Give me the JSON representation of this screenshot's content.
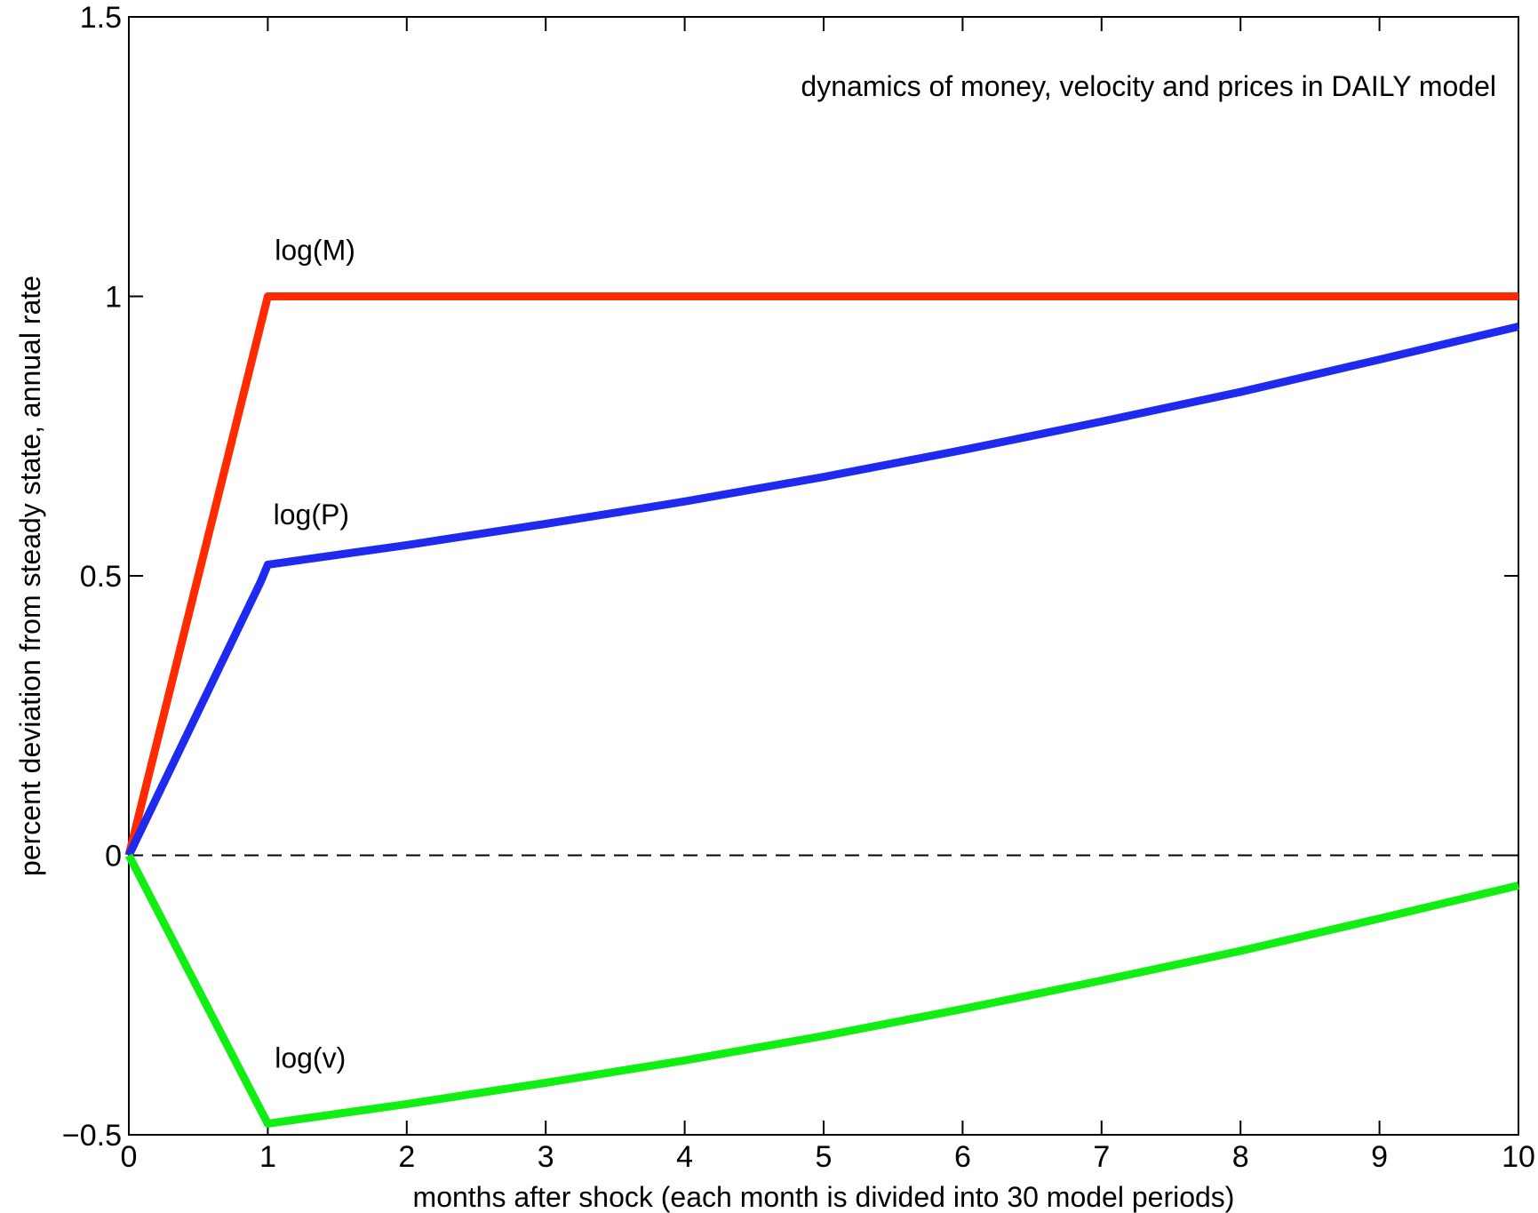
{
  "chart_data": {
    "type": "line",
    "title": "",
    "annotation": "dynamics of money, velocity and prices in DAILY model",
    "xlabel": "months after shock (each month is divided into 30 model periods)",
    "ylabel": "percent deviation from steady state, annual rate",
    "xlim": [
      0,
      10
    ],
    "ylim": [
      -0.5,
      1.5
    ],
    "xticks": [
      0,
      1,
      2,
      3,
      4,
      5,
      6,
      7,
      8,
      9,
      10
    ],
    "xtick_labels": [
      "0",
      "1",
      "2",
      "3",
      "4",
      "5",
      "6",
      "7",
      "8",
      "9",
      "10"
    ],
    "yticks": [
      -0.5,
      0,
      0.5,
      1,
      1.5
    ],
    "ytick_labels": [
      "−0.5",
      "0",
      "0.5",
      "1",
      "1.5"
    ],
    "reference_line": {
      "y": 0,
      "style": "dashed",
      "color": "#000000"
    },
    "grid": false,
    "series": [
      {
        "name": "log(M)",
        "color": "#ff2a00",
        "x": [
          0,
          1,
          10
        ],
        "y": [
          0,
          1.0,
          1.0
        ]
      },
      {
        "name": "log(P)",
        "color": "#1f2af0",
        "x": [
          0,
          0.95,
          1,
          2,
          3,
          4,
          5,
          6,
          7,
          8,
          9,
          10
        ],
        "y": [
          0,
          0.49,
          0.52,
          0.555,
          0.593,
          0.633,
          0.677,
          0.725,
          0.776,
          0.829,
          0.887,
          0.946
        ]
      },
      {
        "name": "log(v)",
        "color": "#11ee11",
        "x": [
          0,
          1,
          2,
          3,
          4,
          5,
          6,
          7,
          8,
          9,
          10
        ],
        "y": [
          0,
          -0.48,
          -0.445,
          -0.407,
          -0.367,
          -0.323,
          -0.275,
          -0.224,
          -0.171,
          -0.113,
          -0.054
        ]
      }
    ]
  }
}
